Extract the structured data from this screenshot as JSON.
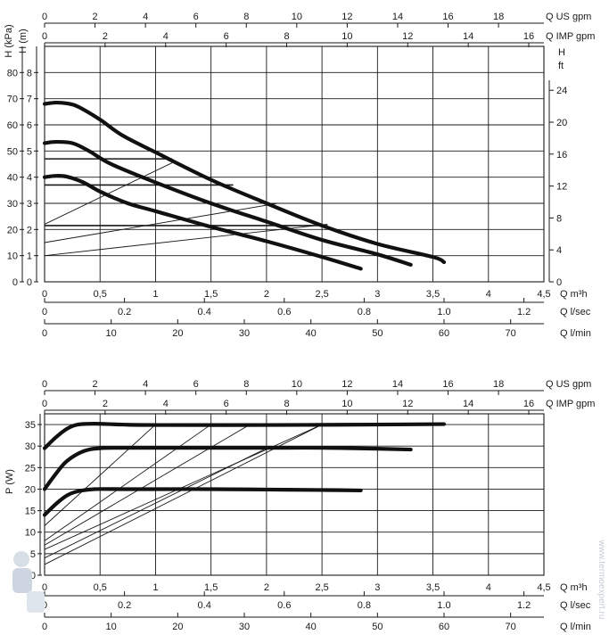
{
  "chart_data": [
    {
      "type": "line",
      "axes": {
        "bottom": [
          {
            "label": "Q m³h",
            "ticks": [
              "0",
              "0,5",
              "1",
              "1,5",
              "2",
              "2,5",
              "3",
              "3,5",
              "4",
              "4,5"
            ],
            "range": [
              0,
              4.5
            ]
          },
          {
            "label": "Q l/sec",
            "ticks": [
              "0",
              "0.2",
              "0.4",
              "0.6",
              "0.8",
              "1.0",
              "1.2"
            ],
            "range": [
              0,
              1.25
            ]
          },
          {
            "label": "Q l/min",
            "ticks": [
              "0",
              "10",
              "20",
              "30",
              "40",
              "50",
              "60",
              "70"
            ],
            "range": [
              0,
              75
            ]
          }
        ],
        "top": [
          {
            "label": "Q US gpm",
            "ticks": [
              "0",
              "2",
              "4",
              "6",
              "8",
              "10",
              "12",
              "14",
              "16",
              "18"
            ],
            "range": [
              0,
              19.8
            ]
          },
          {
            "label": "Q IMP gpm",
            "ticks": [
              "0",
              "2",
              "4",
              "6",
              "8",
              "10",
              "12",
              "14",
              "16"
            ],
            "range": [
              0,
              16.5
            ]
          }
        ],
        "left": [
          {
            "label": "H (kPa)",
            "ticks": [
              "0",
              "10",
              "20",
              "30",
              "40",
              "50",
              "60",
              "70",
              "80"
            ],
            "range": [
              0,
              90
            ]
          },
          {
            "label": "H (m)",
            "ticks": [
              "0",
              "1",
              "2",
              "3",
              "4",
              "5",
              "6",
              "7",
              "8"
            ],
            "range": [
              0,
              9
            ]
          }
        ],
        "right": {
          "label": "H ft",
          "ticks": [
            "0",
            "4",
            "8",
            "12",
            "16",
            "20",
            "24"
          ],
          "range": [
            0,
            29.5
          ]
        }
      },
      "grid": true,
      "xlim": [
        0,
        4.5
      ],
      "ylim": [
        0,
        9
      ],
      "series": [
        {
          "x": [
            0,
            0.1,
            0.2,
            0.3,
            0.5,
            0.7,
            1.0,
            1.5,
            2.0,
            2.5,
            3.0,
            3.5,
            3.6
          ],
          "y": [
            6.8,
            6.85,
            6.82,
            6.7,
            6.2,
            5.6,
            4.95,
            3.9,
            3.0,
            2.15,
            1.45,
            0.95,
            0.75
          ]
        },
        {
          "x": [
            0,
            0.1,
            0.25,
            0.4,
            0.6,
            1.0,
            1.5,
            2.0,
            2.5,
            3.0,
            3.3
          ],
          "y": [
            5.3,
            5.35,
            5.3,
            5.0,
            4.5,
            3.8,
            3.0,
            2.3,
            1.6,
            1.05,
            0.65
          ]
        },
        {
          "x": [
            0,
            0.1,
            0.2,
            0.35,
            0.5,
            0.75,
            1.0,
            1.5,
            2.0,
            2.5,
            2.85
          ],
          "y": [
            4.0,
            4.05,
            4.02,
            3.8,
            3.45,
            3.0,
            2.7,
            2.1,
            1.55,
            0.95,
            0.5
          ]
        }
      ],
      "system_lines": [
        {
          "x": [
            0,
            1.15
          ],
          "y": [
            2.2,
            4.55
          ]
        },
        {
          "x": [
            0,
            2.1
          ],
          "y": [
            1.5,
            3.0
          ]
        },
        {
          "x": [
            0,
            2.55
          ],
          "y": [
            1.0,
            2.2
          ]
        }
      ],
      "level_lines": [
        {
          "y": 4.7,
          "x": [
            0,
            1.15
          ]
        },
        {
          "y": 3.7,
          "x": [
            0,
            1.7
          ]
        },
        {
          "y": 2.15,
          "x": [
            0,
            2.55
          ]
        }
      ]
    },
    {
      "type": "line",
      "axes": {
        "bottom": [
          {
            "label": "Q m³h",
            "ticks": [
              "0",
              "0,5",
              "1",
              "1,5",
              "2",
              "2,5",
              "3",
              "3,5",
              "4",
              "4,5"
            ],
            "range": [
              0,
              4.5
            ]
          },
          {
            "label": "Q l/sec",
            "ticks": [
              "0",
              "0.2",
              "0.4",
              "0.6",
              "0.8",
              "1.0",
              "1.2"
            ],
            "range": [
              0,
              1.25
            ]
          },
          {
            "label": "Q l/min",
            "ticks": [
              "0",
              "10",
              "20",
              "30",
              "40",
              "50",
              "60",
              "70"
            ],
            "range": [
              0,
              75
            ]
          }
        ],
        "top": [
          {
            "label": "Q US gpm",
            "ticks": [
              "0",
              "2",
              "4",
              "6",
              "8",
              "10",
              "12",
              "14",
              "16",
              "18"
            ],
            "range": [
              0,
              19.8
            ]
          },
          {
            "label": "Q IMP gpm",
            "ticks": [
              "0",
              "2",
              "4",
              "6",
              "8",
              "10",
              "12",
              "14",
              "16"
            ],
            "range": [
              0,
              16.5
            ]
          }
        ],
        "left": [
          {
            "label": "P (W)",
            "ticks": [
              "0",
              "5",
              "10",
              "15",
              "20",
              "25",
              "30",
              "35"
            ],
            "range": [
              0,
              37.5
            ]
          }
        ]
      },
      "grid": true,
      "xlim": [
        0,
        4.5
      ],
      "ylim": [
        0,
        37.5
      ],
      "series": [
        {
          "x": [
            0,
            0.1,
            0.2,
            0.3,
            0.45,
            0.7,
            1.0,
            2.0,
            3.0,
            3.6
          ],
          "y": [
            29.5,
            32.0,
            34.0,
            35.0,
            35.2,
            35.0,
            34.9,
            34.9,
            35.0,
            35.1
          ]
        },
        {
          "x": [
            0,
            0.1,
            0.2,
            0.35,
            0.5,
            0.8,
            1.5,
            2.0,
            2.5,
            3.0,
            3.3
          ],
          "y": [
            20.0,
            23.5,
            26.5,
            28.8,
            29.5,
            29.6,
            29.6,
            29.6,
            29.6,
            29.4,
            29.2
          ]
        },
        {
          "x": [
            0,
            0.1,
            0.2,
            0.3,
            0.45,
            0.7,
            1.0,
            1.5,
            2.0,
            2.5,
            2.85
          ],
          "y": [
            14.0,
            16.5,
            18.5,
            19.5,
            20.0,
            20.0,
            20.0,
            20.0,
            19.9,
            19.8,
            19.7
          ]
        }
      ],
      "system_lines": [
        {
          "x": [
            0,
            1.0
          ],
          "y": [
            11.5,
            35.0
          ]
        },
        {
          "x": [
            0,
            1.5
          ],
          "y": [
            8.0,
            35.0
          ]
        },
        {
          "x": [
            0,
            1.85
          ],
          "y": [
            7.0,
            35.0
          ]
        },
        {
          "x": [
            0,
            2.5
          ],
          "y": [
            6.0,
            35.0
          ]
        },
        {
          "x": [
            0,
            2.0
          ],
          "y": [
            4.0,
            29.5
          ]
        },
        {
          "x": [
            0,
            2.5
          ],
          "y": [
            2.5,
            35.0
          ]
        }
      ]
    }
  ],
  "axis_labels": {
    "q_m3h": "Q m³h",
    "q_lsec": "Q l/sec",
    "q_lmin": "Q l/min",
    "q_usgpm": "Q US gpm",
    "q_impgpm": "Q IMP gpm",
    "h_kpa": "H (kPa)",
    "h_m": "H (m)",
    "h_ft_1": "H",
    "h_ft_2": "ft",
    "p_w": "P (W)"
  },
  "watermark": "www.termoexpert.ru",
  "watermark_icon": "plumber-mascot-icon"
}
